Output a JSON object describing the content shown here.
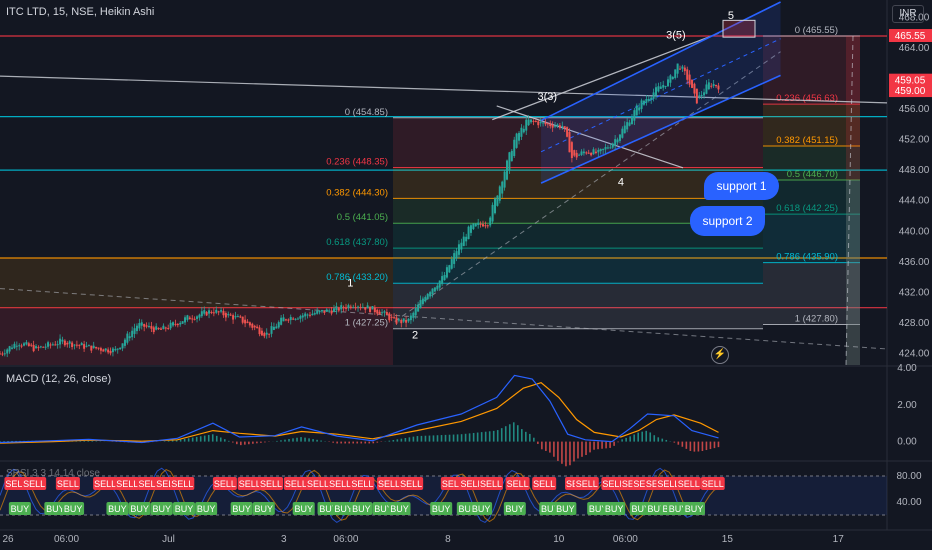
{
  "header": {
    "title": "ITC LTD, 15, NSE, Heikin Ashi",
    "currency": "INR"
  },
  "colors": {
    "bg": "#131722",
    "up": "#26a69a",
    "down": "#ef5350",
    "channel": "#2962ff",
    "macd": "#2962ff",
    "signal": "#ff9800",
    "buy": "#4caf50",
    "sell": "#f23645"
  },
  "buttons": {
    "support1": "support 1",
    "support2": "support 2"
  },
  "chart_data": [
    {
      "type": "candlestick",
      "title": "ITC LTD, 15, NSE, Heikin Ashi",
      "ylim": [
        422.5,
        470
      ],
      "price_ticks": [
        424.0,
        428.0,
        432.0,
        436.0,
        440.0,
        444.0,
        448.0,
        452.0,
        456.0,
        460.0,
        464.0,
        468.0
      ],
      "price_badges": [
        {
          "label": "465.55",
          "value": 465.55,
          "color": "#f23645"
        },
        {
          "label": "459.05",
          "value": 459.05,
          "color": "#f23645"
        },
        {
          "label": "459.00",
          "value": 459.0,
          "color": "#f23645"
        }
      ],
      "time_labels": [
        {
          "label": "26",
          "pos": 0.0
        },
        {
          "label": "06:00",
          "pos": 0.075
        },
        {
          "label": "Jul",
          "pos": 0.19
        },
        {
          "label": "3",
          "pos": 0.32
        },
        {
          "label": "06:00",
          "pos": 0.39
        },
        {
          "label": "8",
          "pos": 0.505
        },
        {
          "label": "10",
          "pos": 0.63
        },
        {
          "label": "06:00",
          "pos": 0.705
        },
        {
          "label": "15",
          "pos": 0.82
        },
        {
          "label": "17",
          "pos": 0.945
        }
      ],
      "fib_left": [
        {
          "label": "0 (454.85)",
          "value": 454.85,
          "color": "#b2b5be"
        },
        {
          "label": "0.236 (448.35)",
          "value": 448.35,
          "color": "#f23645"
        },
        {
          "label": "0.382 (444.30)",
          "value": 444.3,
          "color": "#ff9800"
        },
        {
          "label": "0.5 (441.05)",
          "value": 441.05,
          "color": "#4caf50"
        },
        {
          "label": "0.618 (437.80)",
          "value": 437.8,
          "color": "#089981"
        },
        {
          "label": "0.786 (433.20)",
          "value": 433.2,
          "color": "#00bcd4"
        },
        {
          "label": "1 (427.25)",
          "value": 427.25,
          "color": "#b2b5be"
        }
      ],
      "fib_right": [
        {
          "label": "0 (465.55)",
          "value": 465.55,
          "color": "#b2b5be"
        },
        {
          "label": "0.236 (456.63)",
          "value": 456.63,
          "color": "#f23645"
        },
        {
          "label": "0.382 (451.15)",
          "value": 451.15,
          "color": "#ff9800"
        },
        {
          "label": "0.5 (446.70)",
          "value": 446.7,
          "color": "#4caf50"
        },
        {
          "label": "0.618 (442.25)",
          "value": 442.25,
          "color": "#089981"
        },
        {
          "label": "0.786 (435.90)",
          "value": 435.9,
          "color": "#00bcd4"
        },
        {
          "label": "1 (427.80)",
          "value": 427.8,
          "color": "#b2b5be"
        }
      ],
      "wave_labels": [
        {
          "label": "1",
          "t": 0.395,
          "value": 432.8
        },
        {
          "label": "2",
          "t": 0.468,
          "value": 426.0
        },
        {
          "label": "3(3)",
          "t": 0.617,
          "value": 457.2
        },
        {
          "label": "4",
          "t": 0.7,
          "value": 446.0
        },
        {
          "label": "3(5)",
          "t": 0.762,
          "value": 465.2
        },
        {
          "label": "5",
          "t": 0.824,
          "value": 467.8
        }
      ],
      "anchors": [
        [
          0.0,
          424.0
        ],
        [
          0.02,
          425.5
        ],
        [
          0.04,
          424.6
        ],
        [
          0.07,
          425.6
        ],
        [
          0.1,
          424.8
        ],
        [
          0.13,
          424.4
        ],
        [
          0.155,
          427.8
        ],
        [
          0.18,
          427.0
        ],
        [
          0.21,
          428.6
        ],
        [
          0.24,
          429.6
        ],
        [
          0.27,
          428.5
        ],
        [
          0.3,
          426.5
        ],
        [
          0.32,
          428.6
        ],
        [
          0.35,
          429.2
        ],
        [
          0.38,
          429.8
        ],
        [
          0.4,
          430.5
        ],
        [
          0.43,
          429.4
        ],
        [
          0.445,
          428.2
        ],
        [
          0.46,
          428.2
        ],
        [
          0.48,
          431.8
        ],
        [
          0.5,
          434.0
        ],
        [
          0.515,
          437.6
        ],
        [
          0.53,
          440.5
        ],
        [
          0.55,
          441.2
        ],
        [
          0.565,
          446.5
        ],
        [
          0.58,
          452.0
        ],
        [
          0.595,
          454.5
        ],
        [
          0.615,
          454.0
        ],
        [
          0.635,
          453.8
        ],
        [
          0.645,
          449.5
        ],
        [
          0.66,
          450.5
        ],
        [
          0.675,
          450.2
        ],
        [
          0.69,
          451.5
        ],
        [
          0.705,
          453.8
        ],
        [
          0.72,
          456.5
        ],
        [
          0.74,
          458.5
        ],
        [
          0.755,
          459.8
        ],
        [
          0.765,
          462.0
        ],
        [
          0.775,
          460.0
        ],
        [
          0.785,
          457.0
        ],
        [
          0.8,
          459.4
        ],
        [
          0.81,
          459.0
        ]
      ]
    },
    {
      "type": "line",
      "title": "MACD (12, 26, close)",
      "ylim": [
        -1.0,
        4.0
      ],
      "y_ticks": [
        0.0,
        2.0,
        4.0
      ],
      "series": [
        {
          "name": "MACD",
          "color": "#2962ff",
          "points": [
            [
              0.0,
              -0.05
            ],
            [
              0.06,
              0.05
            ],
            [
              0.1,
              0.12
            ],
            [
              0.16,
              -0.05
            ],
            [
              0.2,
              0.18
            ],
            [
              0.24,
              1.0
            ],
            [
              0.27,
              0.25
            ],
            [
              0.31,
              0.32
            ],
            [
              0.34,
              0.8
            ],
            [
              0.38,
              0.3
            ],
            [
              0.42,
              0.05
            ],
            [
              0.47,
              0.9
            ],
            [
              0.52,
              1.5
            ],
            [
              0.56,
              2.4
            ],
            [
              0.58,
              3.6
            ],
            [
              0.6,
              3.4
            ],
            [
              0.62,
              2.2
            ],
            [
              0.64,
              0.4
            ],
            [
              0.66,
              0.1
            ],
            [
              0.69,
              0.0
            ],
            [
              0.71,
              0.7
            ],
            [
              0.73,
              1.5
            ],
            [
              0.76,
              1.4
            ],
            [
              0.78,
              0.6
            ],
            [
              0.81,
              0.2
            ]
          ]
        },
        {
          "name": "Signal",
          "color": "#ff9800",
          "points": [
            [
              0.0,
              -0.08
            ],
            [
              0.06,
              0.0
            ],
            [
              0.1,
              0.08
            ],
            [
              0.16,
              0.02
            ],
            [
              0.2,
              0.1
            ],
            [
              0.24,
              0.6
            ],
            [
              0.27,
              0.45
            ],
            [
              0.31,
              0.3
            ],
            [
              0.34,
              0.55
            ],
            [
              0.38,
              0.4
            ],
            [
              0.42,
              0.15
            ],
            [
              0.47,
              0.6
            ],
            [
              0.52,
              1.1
            ],
            [
              0.56,
              1.8
            ],
            [
              0.59,
              2.9
            ],
            [
              0.61,
              3.2
            ],
            [
              0.63,
              2.4
            ],
            [
              0.65,
              1.2
            ],
            [
              0.67,
              0.5
            ],
            [
              0.7,
              0.25
            ],
            [
              0.72,
              0.6
            ],
            [
              0.74,
              1.2
            ],
            [
              0.76,
              1.45
            ],
            [
              0.79,
              1.0
            ],
            [
              0.81,
              0.5
            ]
          ]
        }
      ]
    },
    {
      "type": "scatter",
      "title": "SRSI 3 3 14 14 close",
      "ylim": [
        0,
        100
      ],
      "y_ticks": [
        40.0,
        80.0
      ],
      "sell_signals": [
        {
          "label": "SELL",
          "pos": 0.005
        },
        {
          "label": "SELL",
          "pos": 0.025
        },
        {
          "label": "SELL",
          "pos": 0.063
        },
        {
          "label": "SELL",
          "pos": 0.105
        },
        {
          "label": "SELL",
          "pos": 0.13
        },
        {
          "label": "SELL",
          "pos": 0.155
        },
        {
          "label": "SELL",
          "pos": 0.175
        },
        {
          "label": "SELL",
          "pos": 0.192
        },
        {
          "label": "SELL",
          "pos": 0.24
        },
        {
          "label": "SELL",
          "pos": 0.268
        },
        {
          "label": "SELL",
          "pos": 0.292
        },
        {
          "label": "SELL",
          "pos": 0.32
        },
        {
          "label": "SELL",
          "pos": 0.345
        },
        {
          "label": "SELL",
          "pos": 0.37
        },
        {
          "label": "SELL",
          "pos": 0.395
        },
        {
          "label": "SELL",
          "pos": 0.425
        },
        {
          "label": "SELL",
          "pos": 0.45
        },
        {
          "label": "SELL",
          "pos": 0.497
        },
        {
          "label": "SELL",
          "pos": 0.518
        },
        {
          "label": "SELL",
          "pos": 0.54
        },
        {
          "label": "SELL",
          "pos": 0.57
        },
        {
          "label": "SELL",
          "pos": 0.6
        },
        {
          "label": "SELL",
          "pos": 0.637
        },
        {
          "label": "SELL",
          "pos": 0.648
        },
        {
          "label": "SELL",
          "pos": 0.678
        },
        {
          "label": "SELL",
          "pos": 0.7
        },
        {
          "label": "SELL",
          "pos": 0.713
        },
        {
          "label": "SELL",
          "pos": 0.727
        },
        {
          "label": "SELL",
          "pos": 0.74
        },
        {
          "label": "SELL",
          "pos": 0.763
        },
        {
          "label": "SELL",
          "pos": 0.79
        }
      ],
      "buy_signals": [
        {
          "label": "BUY",
          "pos": 0.01
        },
        {
          "label": "BUY",
          "pos": 0.05
        },
        {
          "label": "BUY",
          "pos": 0.07
        },
        {
          "label": "BUY",
          "pos": 0.12
        },
        {
          "label": "BUY",
          "pos": 0.145
        },
        {
          "label": "BUY",
          "pos": 0.17
        },
        {
          "label": "BUY",
          "pos": 0.195
        },
        {
          "label": "BUY",
          "pos": 0.22
        },
        {
          "label": "BUY",
          "pos": 0.26
        },
        {
          "label": "BUY",
          "pos": 0.285
        },
        {
          "label": "BUY",
          "pos": 0.33
        },
        {
          "label": "BUY",
          "pos": 0.358
        },
        {
          "label": "BUY",
          "pos": 0.375
        },
        {
          "label": "BUY",
          "pos": 0.395
        },
        {
          "label": "BUY",
          "pos": 0.42
        },
        {
          "label": "BUY",
          "pos": 0.438
        },
        {
          "label": "BUY",
          "pos": 0.485
        },
        {
          "label": "BUY",
          "pos": 0.515
        },
        {
          "label": "BUY",
          "pos": 0.53
        },
        {
          "label": "BUY",
          "pos": 0.568
        },
        {
          "label": "BUY",
          "pos": 0.608
        },
        {
          "label": "BUY",
          "pos": 0.625
        },
        {
          "label": "BUY",
          "pos": 0.662
        },
        {
          "label": "BUY",
          "pos": 0.68
        },
        {
          "label": "BUY",
          "pos": 0.71
        },
        {
          "label": "BUY",
          "pos": 0.728
        },
        {
          "label": "BUY",
          "pos": 0.745
        },
        {
          "label": "BUY",
          "pos": 0.752
        },
        {
          "label": "BUY",
          "pos": 0.77
        }
      ]
    }
  ]
}
